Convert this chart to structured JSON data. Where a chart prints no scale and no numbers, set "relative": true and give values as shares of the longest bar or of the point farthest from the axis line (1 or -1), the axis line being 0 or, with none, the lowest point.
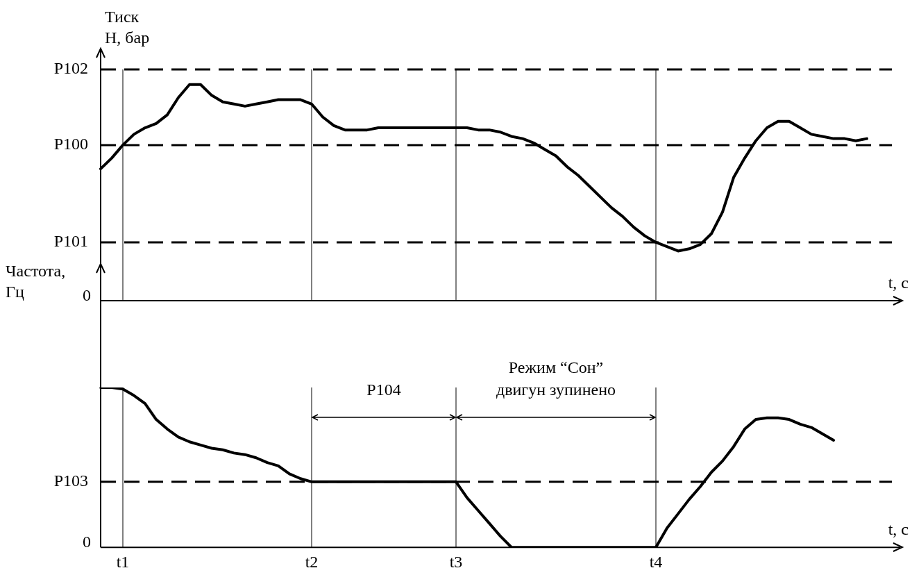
{
  "chart_data": [
    {
      "type": "line",
      "relative": true,
      "ylabel": "Тиск\nН, бар",
      "xlabel": "t, c",
      "tick_labels": false,
      "legend": false,
      "categories": [
        null,
        null,
        "t1",
        null,
        null,
        null,
        null,
        null,
        null,
        null,
        null,
        null,
        null,
        null,
        null,
        null,
        null,
        null,
        null,
        "t2",
        null,
        null,
        null,
        null,
        null,
        null,
        null,
        null,
        null,
        null,
        null,
        null,
        "t3",
        null,
        null,
        null,
        null,
        null,
        null,
        null,
        null,
        null,
        null,
        null,
        null,
        null,
        null,
        null,
        null,
        null,
        "t4",
        null,
        null,
        null,
        null,
        null,
        null,
        null,
        null,
        null,
        null,
        null,
        null,
        null,
        null,
        null,
        null,
        null,
        null,
        null
      ],
      "series": [
        {
          "color": "#000000",
          "values": [
            0.61,
            0.66,
            0.72,
            0.77,
            0.8,
            0.82,
            0.86,
            0.94,
            1.0,
            1.0,
            0.95,
            0.92,
            0.91,
            0.9,
            0.91,
            0.92,
            0.93,
            0.93,
            0.93,
            0.91,
            0.85,
            0.81,
            0.79,
            0.79,
            0.79,
            0.8,
            0.8,
            0.8,
            0.8,
            0.8,
            0.8,
            0.8,
            0.8,
            0.8,
            0.79,
            0.79,
            0.78,
            0.76,
            0.75,
            0.73,
            0.7,
            0.67,
            0.62,
            0.58,
            0.53,
            0.48,
            0.43,
            0.39,
            0.34,
            0.3,
            0.27,
            0.25,
            0.23,
            0.24,
            0.26,
            0.31,
            0.41,
            0.57,
            0.66,
            0.74,
            0.8,
            0.83,
            0.83,
            0.8,
            0.77,
            0.76,
            0.75,
            0.75,
            0.74,
            0.75
          ]
        }
      ],
      "ref_lines": [
        {
          "axis": "y",
          "value": 1.07,
          "label": "P102",
          "line_style": "dashed",
          "color": "#000000"
        },
        {
          "axis": "y",
          "value": 0.72,
          "label": "P100",
          "line_style": "dashed",
          "color": "#000000"
        },
        {
          "axis": "y",
          "value": 0.27,
          "label": "P101",
          "line_style": "dashed",
          "color": "#000000"
        },
        {
          "axis": "x",
          "value": "t1",
          "line_style": "solid",
          "color": "#000000"
        },
        {
          "axis": "x",
          "value": "t2",
          "line_style": "solid",
          "color": "#000000"
        },
        {
          "axis": "x",
          "value": "t3",
          "line_style": "solid",
          "color": "#000000"
        },
        {
          "axis": "x",
          "value": "t4",
          "line_style": "solid",
          "color": "#000000"
        }
      ],
      "annotations": [
        "0"
      ]
    },
    {
      "type": "line",
      "relative": true,
      "ylabel": "Частота,\nГц",
      "xlabel": "t, c",
      "legend": false,
      "categories": [
        null,
        null,
        "t1",
        null,
        null,
        null,
        null,
        null,
        null,
        null,
        null,
        null,
        null,
        null,
        null,
        null,
        null,
        null,
        null,
        "t2",
        null,
        null,
        null,
        null,
        null,
        null,
        null,
        null,
        null,
        null,
        null,
        null,
        "t3",
        null,
        null,
        null,
        null,
        null,
        null,
        null,
        null,
        null,
        null,
        null,
        null,
        null,
        null,
        null,
        null,
        null,
        "t4",
        null,
        null,
        null,
        null,
        null,
        null,
        null,
        null,
        null,
        null,
        null,
        null,
        null,
        null,
        null,
        null,
        null,
        null,
        null
      ],
      "series": [
        {
          "color": "#000000",
          "values": [
            1.0,
            1.0,
            0.99,
            0.95,
            0.9,
            0.8,
            0.74,
            0.69,
            0.66,
            0.64,
            0.62,
            0.61,
            0.59,
            0.58,
            0.56,
            0.53,
            0.51,
            0.46,
            0.43,
            0.41,
            0.41,
            0.41,
            0.41,
            0.41,
            0.41,
            0.41,
            0.41,
            0.41,
            0.41,
            0.41,
            0.41,
            0.41,
            0.41,
            0.31,
            0.23,
            0.15,
            0.07,
            0,
            0,
            0,
            0,
            0,
            0,
            0,
            0,
            0,
            0,
            0,
            0,
            0,
            0,
            0.12,
            0.21,
            0.3,
            0.38,
            0.47,
            0.54,
            0.63,
            0.74,
            0.8,
            0.81,
            0.81,
            0.8,
            0.77,
            0.75,
            0.71,
            0.67,
            null,
            null,
            null
          ]
        }
      ],
      "ref_lines": [
        {
          "axis": "y",
          "value": 0.41,
          "label": "P103",
          "line_style": "dashed",
          "color": "#000000"
        },
        {
          "axis": "x",
          "value": "t1",
          "line_style": "solid",
          "color": "#000000"
        },
        {
          "axis": "x",
          "value": "t2",
          "line_style": "solid",
          "color": "#000000"
        },
        {
          "axis": "x",
          "value": "t3",
          "line_style": "solid",
          "color": "#000000"
        },
        {
          "axis": "x",
          "value": "t4",
          "line_style": "solid",
          "color": "#000000"
        }
      ],
      "annotations": [
        "0",
        "P104",
        "Режим “Сон”\nдвигун зупинено"
      ]
    }
  ]
}
